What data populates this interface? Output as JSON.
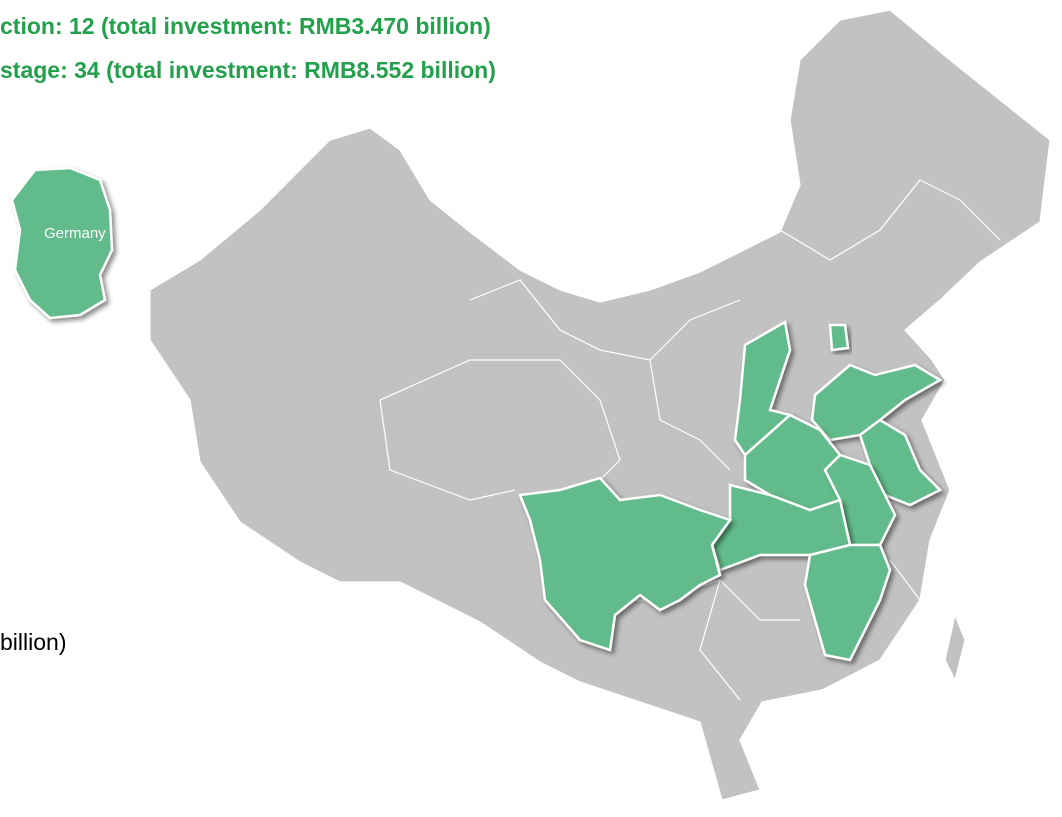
{
  "header": {
    "line1": "ction: 12 (total investment: RMB3.470 billion)",
    "line2": "stage: 34 (total investment: RMB8.552 billion)"
  },
  "map": {
    "inset_label": "Germany",
    "side_text": "billion)"
  }
}
